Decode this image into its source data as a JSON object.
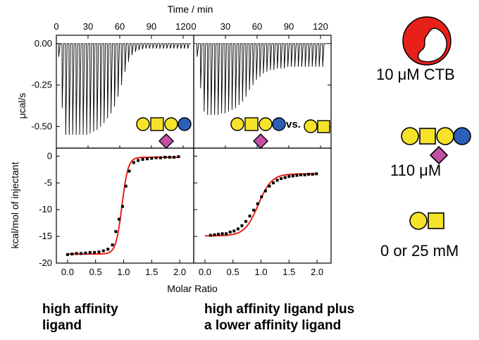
{
  "captions": {
    "left_line1": "high affinity",
    "left_line2": "ligand",
    "right_line1": "high affinity ligand plus",
    "right_line2": "a lower affinity ligand"
  },
  "side_labels": {
    "ctb": "10 μM CTB",
    "gm1": "110 μM",
    "lactose": "0 or 25 mM"
  },
  "annotations": {
    "vs": "vs."
  },
  "colors": {
    "fit_curve": "#e8201a",
    "glucose_yellow": "#f5e32a",
    "sialic_purple": "#c54fa5",
    "galnac_blue": "#2b5fb8",
    "ctb_red": "#e8201a"
  },
  "icons": [
    "ctb-protein-icon",
    "gm1-glycan-icon",
    "lactose-icon"
  ],
  "chart_data": [
    {
      "type": "line",
      "panel": "raw-heat-high-affinity",
      "xlabel": "Time / min",
      "ylabel": "μcal/s",
      "xticks": [
        "0",
        "30",
        "60",
        "90",
        "120"
      ],
      "yticks": [
        "0.00",
        "-0.25",
        "-0.50"
      ],
      "xlim": [
        0,
        130
      ],
      "ylim": [
        -0.63,
        0.05
      ],
      "injection_start_min": 2,
      "injection_interval_min": 3.3,
      "peak_heights": [
        -0.08,
        -0.39,
        -0.55,
        -0.55,
        -0.55,
        -0.55,
        -0.55,
        -0.55,
        -0.55,
        -0.54,
        -0.53,
        -0.52,
        -0.5,
        -0.48,
        -0.45,
        -0.42,
        -0.38,
        -0.32,
        -0.25,
        -0.17,
        -0.11,
        -0.07,
        -0.05,
        -0.04,
        -0.035,
        -0.03,
        -0.03,
        -0.03,
        -0.03,
        -0.03,
        -0.03,
        -0.03,
        -0.03,
        -0.03,
        -0.03,
        -0.03,
        -0.03,
        -0.03,
        -0.03,
        -0.03,
        -0.03,
        -0.03,
        -0.03,
        -0.03,
        -0.03,
        -0.03,
        -0.03,
        -0.03,
        -0.03,
        -0.03
      ]
    },
    {
      "type": "line",
      "panel": "raw-heat-competition",
      "xlabel": "Time / min",
      "ylabel": "",
      "xticks": [
        "0",
        "30",
        "60",
        "90",
        "120"
      ],
      "xlim": [
        0,
        130
      ],
      "ylim": [
        -0.63,
        0.05
      ],
      "injection_start_min": 3,
      "injection_interval_min": 3.3,
      "peak_heights": [
        -0.08,
        -0.27,
        -0.41,
        -0.43,
        -0.43,
        -0.43,
        -0.43,
        -0.42,
        -0.42,
        -0.41,
        -0.4,
        -0.39,
        -0.37,
        -0.35,
        -0.32,
        -0.28,
        -0.25,
        -0.22,
        -0.2,
        -0.18,
        -0.17,
        -0.16,
        -0.16,
        -0.15,
        -0.15,
        -0.15,
        -0.14,
        -0.14,
        -0.14,
        -0.14,
        -0.14,
        -0.14,
        -0.14,
        -0.14,
        -0.14,
        -0.14,
        -0.14
      ]
    },
    {
      "type": "scatter",
      "panel": "binding-isotherm-high-affinity",
      "xlabel": "Molar Ratio",
      "ylabel": "kcal/mol of injectant",
      "xticks": [
        "0.0",
        "0.5",
        "1.0",
        "1.5",
        "2.0"
      ],
      "yticks": [
        "0",
        "-5",
        "-10",
        "-15",
        "-20"
      ],
      "xlim": [
        -0.2,
        2.25
      ],
      "ylim": [
        -20,
        1.5
      ],
      "fit": {
        "bottom": -18.3,
        "top": -0.2,
        "midpoint": 0.97,
        "width": 0.055,
        "color": "#e8201a"
      },
      "points": [
        [
          0.0,
          -18.4
        ],
        [
          0.08,
          -18.3
        ],
        [
          0.16,
          -18.2
        ],
        [
          0.24,
          -18.2
        ],
        [
          0.32,
          -18.1
        ],
        [
          0.4,
          -18.0
        ],
        [
          0.48,
          -18.0
        ],
        [
          0.56,
          -17.9
        ],
        [
          0.64,
          -17.7
        ],
        [
          0.72,
          -17.4
        ],
        [
          0.8,
          -16.6
        ],
        [
          0.86,
          -14.1
        ],
        [
          0.92,
          -11.8
        ],
        [
          0.98,
          -9.4
        ],
        [
          1.04,
          -5.6
        ],
        [
          1.1,
          -2.8
        ],
        [
          1.18,
          -1.2
        ],
        [
          1.26,
          -0.8
        ],
        [
          1.34,
          -0.6
        ],
        [
          1.42,
          -0.5
        ],
        [
          1.5,
          -0.4
        ],
        [
          1.58,
          -0.3
        ],
        [
          1.66,
          -0.3
        ],
        [
          1.74,
          -0.2
        ],
        [
          1.82,
          -0.2
        ],
        [
          1.9,
          -0.2
        ],
        [
          1.98,
          -0.1
        ]
      ]
    },
    {
      "type": "scatter",
      "panel": "binding-isotherm-competition",
      "xlabel": "Molar Ratio",
      "ylabel": "",
      "xticks": [
        "0.0",
        "0.5",
        "1.0",
        "1.5",
        "2.0"
      ],
      "xlim": [
        -0.2,
        2.25
      ],
      "ylim": [
        -20,
        1.5
      ],
      "fit": {
        "bottom": -14.9,
        "top": -3.3,
        "midpoint": 0.95,
        "width": 0.12,
        "color": "#e8201a"
      },
      "points": [
        [
          0.1,
          -14.8
        ],
        [
          0.17,
          -14.7
        ],
        [
          0.24,
          -14.6
        ],
        [
          0.31,
          -14.5
        ],
        [
          0.38,
          -14.5
        ],
        [
          0.45,
          -14.2
        ],
        [
          0.52,
          -14.0
        ],
        [
          0.59,
          -13.6
        ],
        [
          0.66,
          -13.0
        ],
        [
          0.73,
          -12.2
        ],
        [
          0.8,
          -11.2
        ],
        [
          0.87,
          -10.1
        ],
        [
          0.94,
          -8.9
        ],
        [
          1.01,
          -7.6
        ],
        [
          1.08,
          -6.5
        ],
        [
          1.15,
          -5.6
        ],
        [
          1.22,
          -5.0
        ],
        [
          1.29,
          -4.5
        ],
        [
          1.36,
          -4.2
        ],
        [
          1.43,
          -4.0
        ],
        [
          1.5,
          -3.8
        ],
        [
          1.57,
          -3.7
        ],
        [
          1.64,
          -3.6
        ],
        [
          1.71,
          -3.5
        ],
        [
          1.78,
          -3.5
        ],
        [
          1.85,
          -3.4
        ],
        [
          1.92,
          -3.4
        ],
        [
          1.99,
          -3.3
        ]
      ]
    }
  ]
}
